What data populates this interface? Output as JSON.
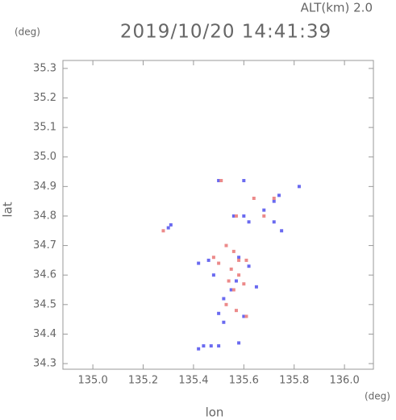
{
  "chart_data": {
    "type": "scatter",
    "altitude_label": "ALT(km) 2.0",
    "title": "2019/10/20 14:41:39",
    "y_unit": "(deg)",
    "x_unit": "(deg)",
    "xlabel": "lon",
    "ylabel": "lat",
    "xlim": [
      134.881,
      136.115
    ],
    "ylim": [
      34.281,
      35.327
    ],
    "xticks": [
      {
        "value": 135,
        "label": "135.0"
      },
      135.2,
      135.4,
      135.6,
      135.8,
      {
        "value": 136,
        "label": "136.0"
      }
    ],
    "yticks": [
      34.3,
      34.4,
      34.5,
      34.6,
      34.7,
      34.8,
      34.9,
      {
        "value": 35,
        "label": "35.0"
      },
      35.1,
      35.2,
      35.3
    ],
    "series": [
      {
        "color": "#6a6af0",
        "x": [
          135.82,
          135.74,
          135.72,
          135.68,
          135.72,
          135.75,
          135.62,
          135.56,
          135.6,
          135.5,
          135.31,
          135.3,
          135.46,
          135.42,
          135.48,
          135.58,
          135.62,
          135.65,
          135.57,
          135.52,
          135.5,
          135.52,
          135.6,
          135.55,
          135.44,
          135.47,
          135.42,
          135.5,
          135.58,
          135.6
        ],
        "values": [
          34.9,
          34.87,
          34.85,
          34.82,
          34.78,
          34.75,
          34.78,
          34.8,
          34.92,
          34.92,
          34.77,
          34.76,
          34.65,
          34.64,
          34.6,
          34.66,
          34.63,
          34.56,
          34.58,
          34.52,
          34.47,
          34.44,
          34.46,
          34.55,
          34.36,
          34.36,
          34.35,
          34.36,
          34.37,
          34.8
        ]
      },
      {
        "color": "#ec8a8a",
        "x": [
          135.51,
          135.72,
          135.68,
          135.28,
          135.53,
          135.56,
          135.58,
          135.61,
          135.55,
          135.58,
          135.54,
          135.56,
          135.6,
          135.53,
          135.57,
          135.61,
          135.5,
          135.48,
          135.57,
          135.64
        ],
        "values": [
          34.92,
          34.86,
          34.8,
          34.75,
          34.7,
          34.68,
          34.65,
          34.65,
          34.62,
          34.6,
          34.58,
          34.55,
          34.57,
          34.5,
          34.48,
          34.46,
          34.64,
          34.66,
          34.8,
          34.86
        ]
      }
    ]
  }
}
